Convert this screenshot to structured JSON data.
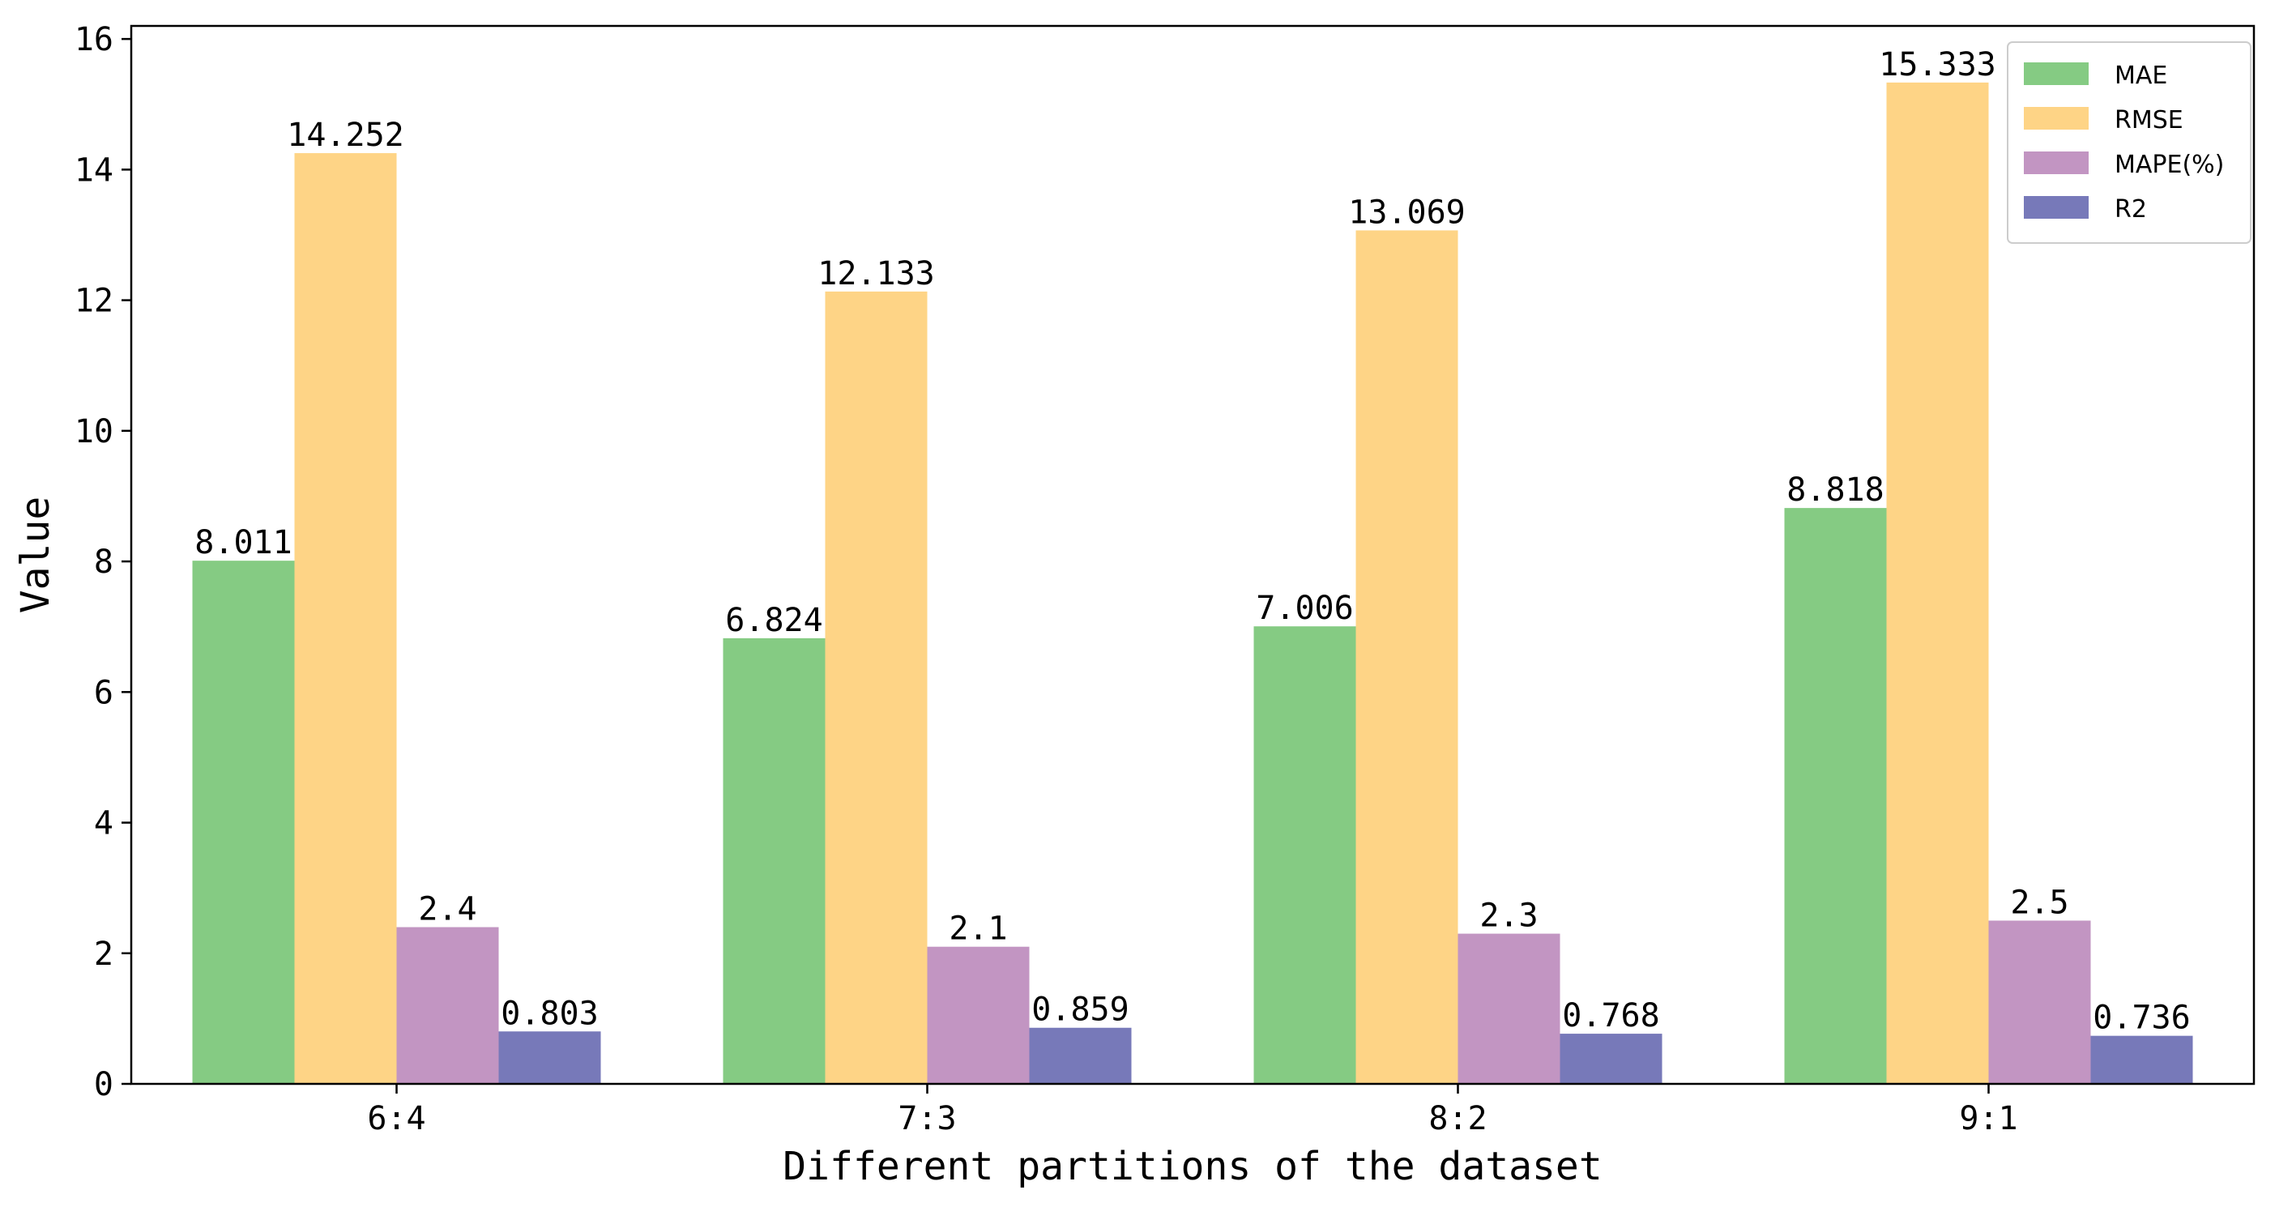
{
  "chart_data": {
    "type": "bar",
    "title": "",
    "xlabel": "Different partitions of the dataset",
    "ylabel": "Value",
    "categories": [
      "6:4",
      "7:3",
      "8:2",
      "9:1"
    ],
    "ylim": [
      0,
      16.2
    ],
    "yticks": [
      0,
      2,
      4,
      6,
      8,
      10,
      12,
      14,
      16
    ],
    "grid": false,
    "legend_position": "top-right",
    "series": [
      {
        "name": "MAE",
        "color": "#85cb83",
        "values": [
          8.011,
          6.824,
          7.006,
          8.818
        ],
        "labels": [
          "8.011",
          "6.824",
          "7.006",
          "8.818"
        ]
      },
      {
        "name": "RMSE",
        "color": "#fed486",
        "values": [
          14.252,
          12.133,
          13.069,
          15.333
        ],
        "labels": [
          "14.252",
          "12.133",
          "13.069",
          "15.333"
        ]
      },
      {
        "name": "MAPE(%)",
        "color": "#c295c2",
        "values": [
          2.4,
          2.1,
          2.3,
          2.5
        ],
        "labels": [
          "2.4",
          "2.1",
          "2.3",
          "2.5"
        ]
      },
      {
        "name": "R2",
        "color": "#7779b9",
        "values": [
          0.803,
          0.859,
          0.768,
          0.736
        ],
        "labels": [
          "0.803",
          "0.859",
          "0.768",
          "0.736"
        ]
      }
    ]
  }
}
